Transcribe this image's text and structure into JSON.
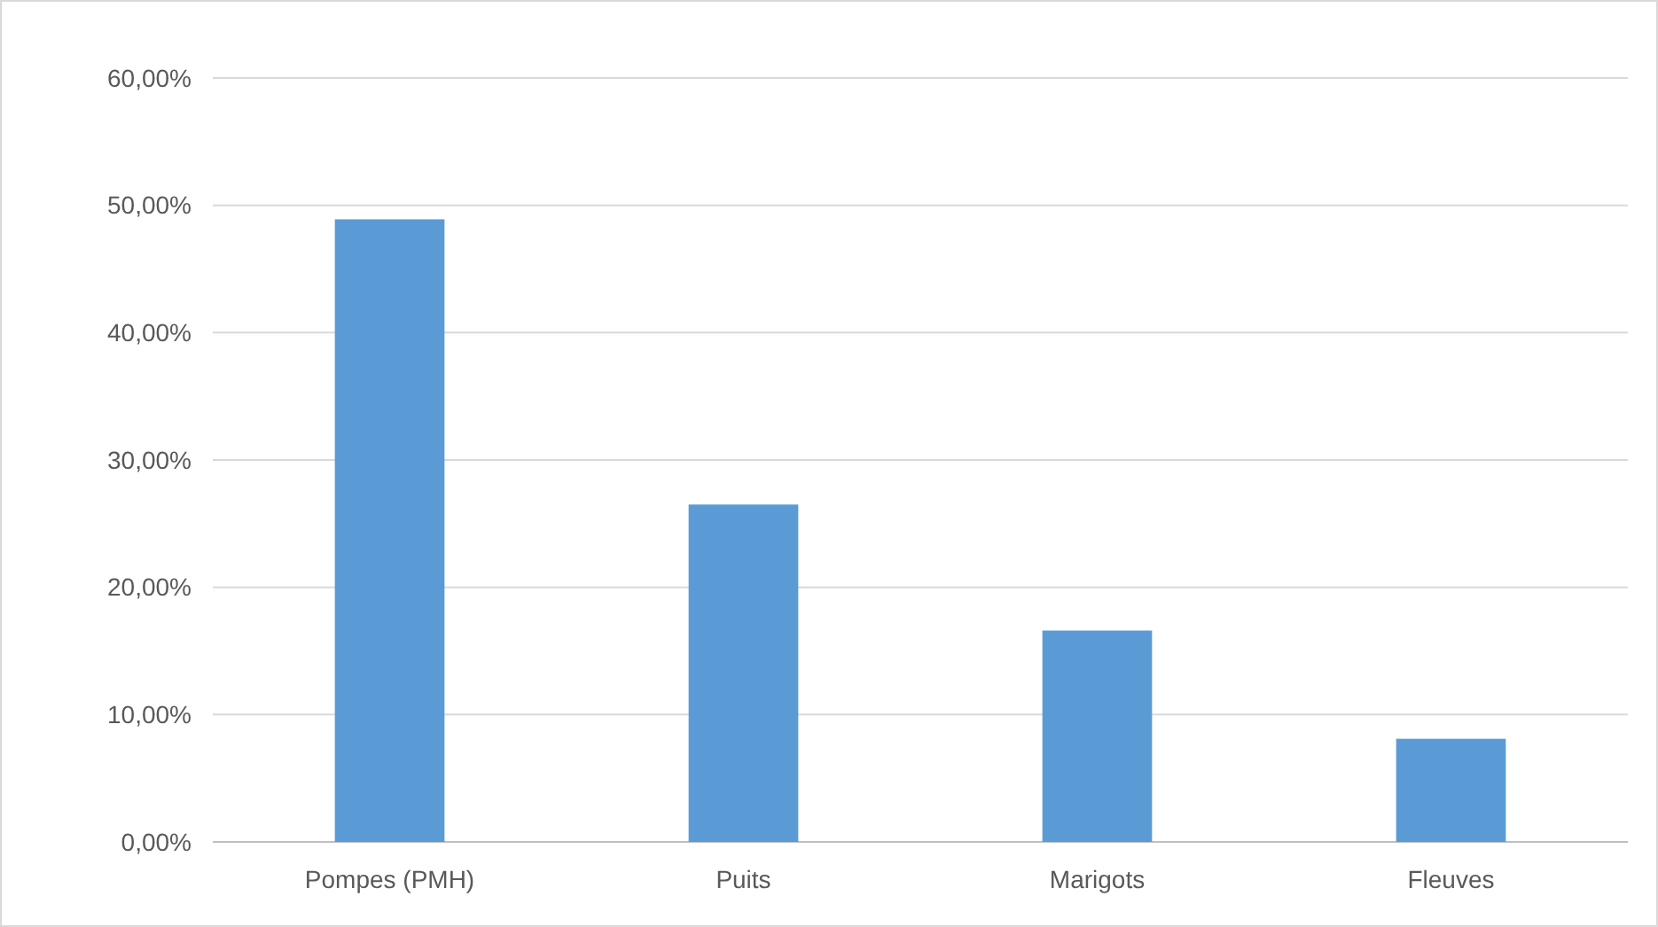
{
  "chart_data": {
    "type": "bar",
    "categories": [
      "Pompes (PMH)",
      "Puits",
      "Marigots",
      "Fleuves"
    ],
    "values": [
      48.9,
      26.5,
      16.6,
      8.1
    ],
    "color": "#5b9bd5",
    "ylim": [
      0,
      60
    ],
    "yticks": [
      {
        "value": 0,
        "label": "0,00%"
      },
      {
        "value": 10,
        "label": "10,00%"
      },
      {
        "value": 20,
        "label": "20,00%"
      },
      {
        "value": 30,
        "label": "30,00%"
      },
      {
        "value": 40,
        "label": "40,00%"
      },
      {
        "value": 50,
        "label": "50,00%"
      },
      {
        "value": 60,
        "label": "60,00%"
      }
    ],
    "grid": "y"
  }
}
